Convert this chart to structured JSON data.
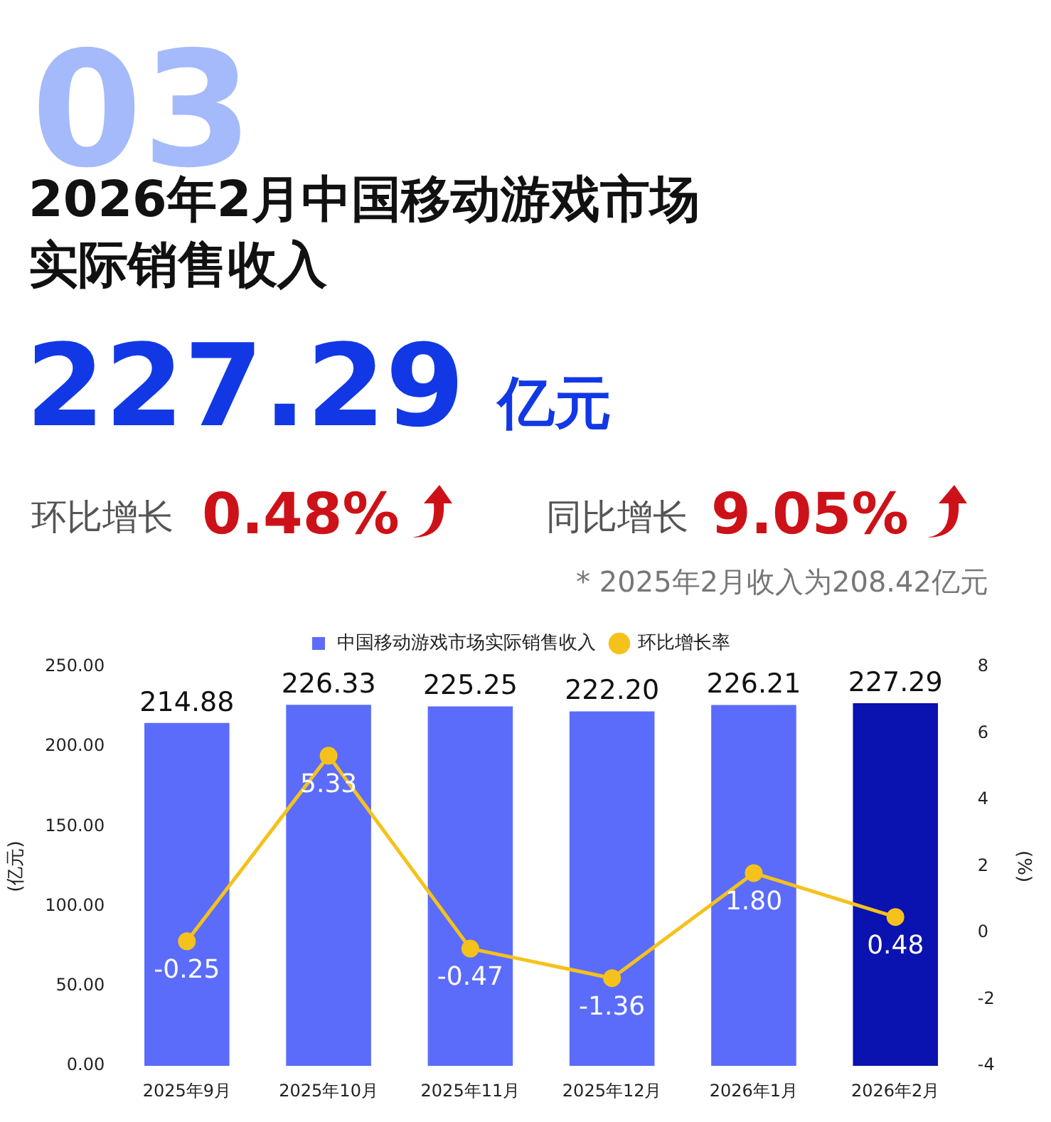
{
  "chart_data": {
    "type": "bar",
    "title": "2026年2月中国移动游戏市场实际销售收入",
    "annotations": [
      "03",
      "227.29",
      "亿元",
      "环比增长",
      "0.48%",
      "同比增长",
      "9.05%",
      "* 2025年2月收入为208.42亿元"
    ],
    "categories": [
      "2025年9月",
      "2025年10月",
      "2025年11月",
      "2025年12月",
      "2026年1月",
      "2026年2月"
    ],
    "series": [
      {
        "name": "中国移动游戏市场实际销售收入",
        "colors": [
          "#5b6cfb",
          "#5b6cfb",
          "#5b6cfb",
          "#5b6cfb",
          "#5b6cfb",
          "#0a12b0"
        ],
        "values": [
          214.88,
          226.33,
          225.25,
          222.2,
          226.21,
          227.29
        ],
        "value_labels": [
          "214.88",
          "226.33",
          "225.25",
          "222.20",
          "226.21",
          "227.29"
        ]
      },
      {
        "name": "环比增长率",
        "type": "line",
        "axis": "y2",
        "color": "#f5c21b",
        "values": [
          -0.25,
          5.33,
          -0.47,
          -1.36,
          1.8,
          0.48
        ],
        "value_labels": [
          "-0.25",
          "5.33",
          "-0.47",
          "-1.36",
          "1.80",
          "0.48"
        ]
      }
    ],
    "ylabel": "(亿元)",
    "y2label": "(%)",
    "ylim": [
      0,
      250
    ],
    "yticks": [
      {
        "value": 0,
        "label": "0.00"
      },
      {
        "value": 50,
        "label": "50.00"
      },
      {
        "value": 100,
        "label": "100.00"
      },
      {
        "value": 150,
        "label": "150.00"
      },
      {
        "value": 200,
        "label": "200.00"
      },
      {
        "value": 250,
        "label": "250.00"
      }
    ],
    "y2lim": [
      -4,
      8
    ],
    "y2ticks": [
      -4,
      -2,
      0,
      2,
      4,
      6,
      8
    ],
    "legend": "top",
    "grid": false,
    "marker": "circle",
    "line_style": "solid"
  }
}
